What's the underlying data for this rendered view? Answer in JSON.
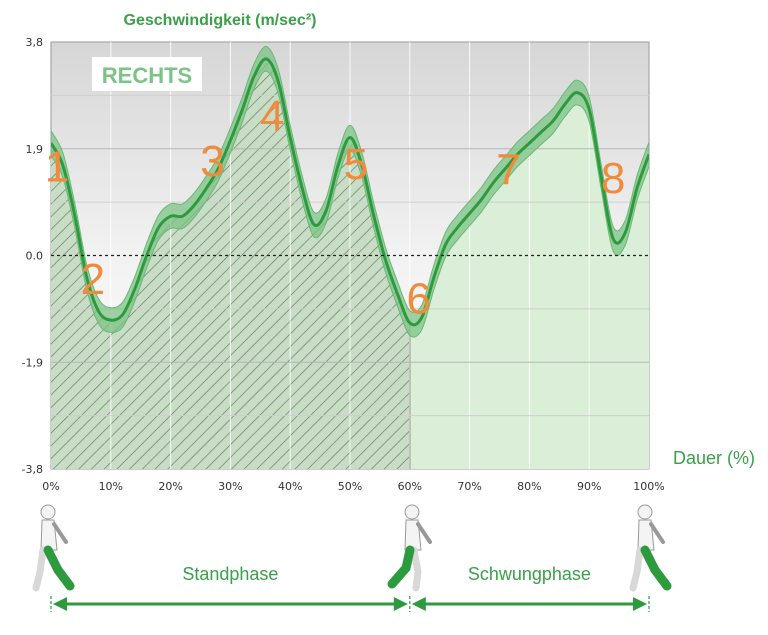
{
  "chart_data": {
    "type": "line",
    "title": "Geschwindigkeit (m/sec²)",
    "ylabel": "",
    "xlabel": "Dauer (%)",
    "ylim": [
      -3.8,
      3.8
    ],
    "xlim": [
      0,
      100
    ],
    "yticks": [
      "3,8",
      "1,9",
      "0.0",
      "-1,9",
      "-3,8"
    ],
    "ytick_values": [
      3.8,
      1.9,
      0.0,
      -1.9,
      -3.8
    ],
    "xticks": [
      "0%",
      "10%",
      "20%",
      "30%",
      "40%",
      "50%",
      "60%",
      "70%",
      "80%",
      "90%",
      "100%"
    ],
    "xtick_values": [
      0,
      10,
      20,
      30,
      40,
      50,
      60,
      70,
      80,
      90,
      100
    ],
    "grid": true,
    "badge": "RECHTS",
    "series": [
      {
        "x": [
          0,
          2,
          4,
          6,
          8,
          10,
          12,
          14,
          16,
          18,
          20,
          22,
          24,
          26,
          28,
          30,
          32,
          34,
          36,
          38,
          40,
          42,
          44,
          46,
          48,
          50,
          52,
          54,
          56,
          58,
          60,
          62,
          64,
          66,
          68,
          70,
          72,
          74,
          76,
          78,
          80,
          82,
          84,
          86,
          88,
          90,
          92,
          94,
          96,
          98,
          100
        ],
        "y": [
          2.0,
          1.6,
          0.7,
          -0.4,
          -1.0,
          -1.15,
          -1.05,
          -0.6,
          0.0,
          0.5,
          0.7,
          0.7,
          0.9,
          1.2,
          1.55,
          2.05,
          2.6,
          3.2,
          3.5,
          3.1,
          2.1,
          1.2,
          0.55,
          0.8,
          1.6,
          2.1,
          1.6,
          0.7,
          -0.1,
          -0.7,
          -1.2,
          -1.1,
          -0.4,
          0.2,
          0.5,
          0.75,
          1.0,
          1.3,
          1.55,
          1.8,
          2.0,
          2.2,
          2.4,
          2.7,
          2.9,
          2.6,
          1.4,
          0.3,
          0.4,
          1.2,
          1.8
        ],
        "band": 0.22
      }
    ],
    "annotations": [
      "1",
      "2",
      "3",
      "4",
      "5",
      "6",
      "7",
      "8"
    ],
    "annotation_positions": [
      [
        1,
        1.6
      ],
      [
        7,
        -0.4
      ],
      [
        27,
        1.7
      ],
      [
        37,
        2.5
      ],
      [
        51,
        1.65
      ],
      [
        61.5,
        -0.75
      ],
      [
        76.5,
        1.55
      ],
      [
        94,
        1.4
      ]
    ],
    "phases": [
      {
        "name": "Standphase",
        "from": 0,
        "to": 60
      },
      {
        "name": "Schwungphase",
        "from": 60,
        "to": 100
      }
    ]
  }
}
